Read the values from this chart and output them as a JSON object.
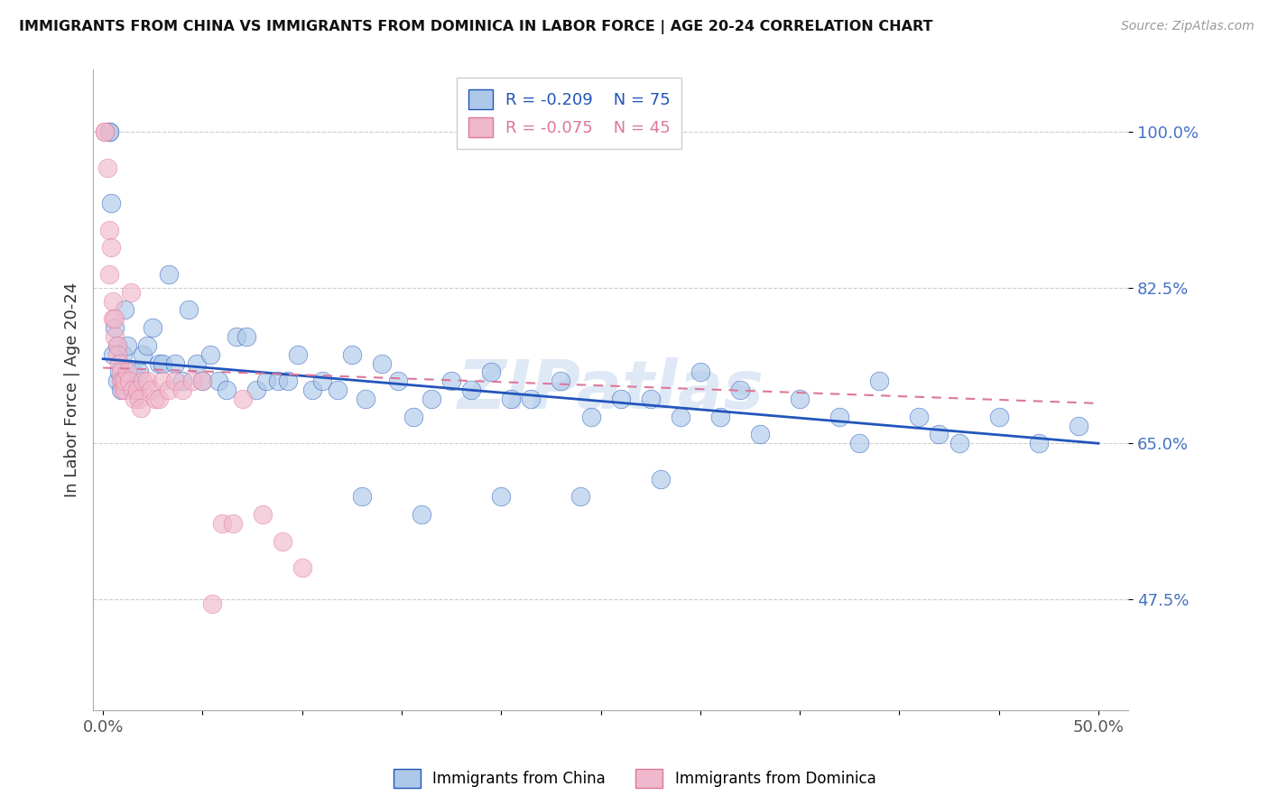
{
  "title": "IMMIGRANTS FROM CHINA VS IMMIGRANTS FROM DOMINICA IN LABOR FORCE | AGE 20-24 CORRELATION CHART",
  "source": "Source: ZipAtlas.com",
  "ylabel": "In Labor Force | Age 20-24",
  "color_china": "#adc8e8",
  "color_dominica": "#f0b8cc",
  "line_china": "#2255bb",
  "line_dominica": "#dd7799",
  "legend_r_china": "-0.209",
  "legend_n_china": "75",
  "legend_r_dominica": "-0.075",
  "legend_n_dominica": "45",
  "watermark": "ZIPatlas",
  "ytick_vals": [
    0.475,
    0.65,
    0.825,
    1.0
  ],
  "ytick_labels": [
    "47.5%",
    "65.0%",
    "82.5%",
    "100.0%"
  ],
  "xtick_vals": [
    0.0,
    0.05,
    0.1,
    0.15,
    0.2,
    0.25,
    0.3,
    0.35,
    0.4,
    0.45,
    0.5
  ],
  "xtick_labels": [
    "0.0%",
    "",
    "",
    "",
    "",
    "",
    "",
    "",
    "",
    "",
    "50.0%"
  ],
  "xmin": -0.005,
  "xmax": 0.515,
  "ymin": 0.35,
  "ymax": 1.07,
  "china_reg": [
    0.745,
    0.65
  ],
  "dominica_reg": [
    0.735,
    0.695
  ],
  "china_x": [
    0.003,
    0.003,
    0.004,
    0.005,
    0.006,
    0.007,
    0.007,
    0.008,
    0.009,
    0.01,
    0.011,
    0.012,
    0.013,
    0.015,
    0.016,
    0.018,
    0.02,
    0.022,
    0.025,
    0.028,
    0.03,
    0.033,
    0.036,
    0.04,
    0.043,
    0.047,
    0.05,
    0.054,
    0.058,
    0.062,
    0.067,
    0.072,
    0.077,
    0.082,
    0.088,
    0.093,
    0.098,
    0.105,
    0.11,
    0.118,
    0.125,
    0.132,
    0.14,
    0.148,
    0.156,
    0.165,
    0.175,
    0.185,
    0.195,
    0.205,
    0.215,
    0.23,
    0.245,
    0.26,
    0.275,
    0.29,
    0.31,
    0.33,
    0.35,
    0.37,
    0.39,
    0.41,
    0.43,
    0.45,
    0.47,
    0.49,
    0.3,
    0.38,
    0.32,
    0.42,
    0.28,
    0.24,
    0.2,
    0.16,
    0.13
  ],
  "china_y": [
    1.0,
    1.0,
    0.92,
    0.75,
    0.78,
    0.76,
    0.72,
    0.73,
    0.71,
    0.75,
    0.8,
    0.76,
    0.72,
    0.73,
    0.71,
    0.73,
    0.75,
    0.76,
    0.78,
    0.74,
    0.74,
    0.84,
    0.74,
    0.72,
    0.8,
    0.74,
    0.72,
    0.75,
    0.72,
    0.71,
    0.77,
    0.77,
    0.71,
    0.72,
    0.72,
    0.72,
    0.75,
    0.71,
    0.72,
    0.71,
    0.75,
    0.7,
    0.74,
    0.72,
    0.68,
    0.7,
    0.72,
    0.71,
    0.73,
    0.7,
    0.7,
    0.72,
    0.68,
    0.7,
    0.7,
    0.68,
    0.68,
    0.66,
    0.7,
    0.68,
    0.72,
    0.68,
    0.65,
    0.68,
    0.65,
    0.67,
    0.73,
    0.65,
    0.71,
    0.66,
    0.61,
    0.59,
    0.59,
    0.57,
    0.59
  ],
  "dominica_x": [
    0.001,
    0.001,
    0.002,
    0.003,
    0.003,
    0.004,
    0.005,
    0.005,
    0.006,
    0.006,
    0.007,
    0.007,
    0.008,
    0.009,
    0.009,
    0.01,
    0.01,
    0.011,
    0.011,
    0.012,
    0.013,
    0.014,
    0.015,
    0.016,
    0.017,
    0.018,
    0.019,
    0.02,
    0.022,
    0.024,
    0.026,
    0.028,
    0.03,
    0.033,
    0.036,
    0.04,
    0.045,
    0.05,
    0.055,
    0.06,
    0.065,
    0.07,
    0.08,
    0.09,
    0.1
  ],
  "dominica_y": [
    1.0,
    1.0,
    0.96,
    0.89,
    0.84,
    0.87,
    0.81,
    0.79,
    0.77,
    0.79,
    0.76,
    0.75,
    0.74,
    0.73,
    0.72,
    0.72,
    0.71,
    0.71,
    0.72,
    0.73,
    0.72,
    0.82,
    0.71,
    0.7,
    0.71,
    0.7,
    0.69,
    0.72,
    0.72,
    0.71,
    0.7,
    0.7,
    0.72,
    0.71,
    0.72,
    0.71,
    0.72,
    0.72,
    0.47,
    0.56,
    0.56,
    0.7,
    0.57,
    0.54,
    0.51
  ]
}
